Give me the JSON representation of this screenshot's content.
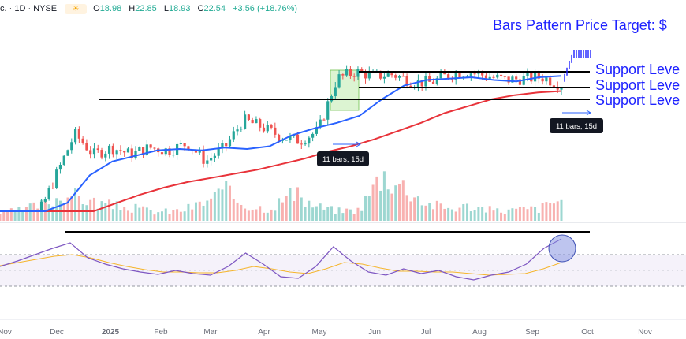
{
  "header": {
    "symbol": "c. · 1D · NYSE",
    "open_k": "O",
    "open_v": "18.98",
    "high_k": "H",
    "high_v": "22.85",
    "low_k": "L",
    "low_v": "18.93",
    "close_k": "C",
    "close_v": "22.54",
    "change": "+3.56 (+18.76%)",
    "session_icon": "sun-icon"
  },
  "annotations": {
    "target_label": "Bars Pattern Price Target: $",
    "support_labels": [
      "Support Leve",
      "Support Leve",
      "Support Leve"
    ],
    "bars_box_1": "11 bars, 15d",
    "bars_box_2": "11 bars, 15d"
  },
  "colors": {
    "up": "#26a69a",
    "down": "#ef5350",
    "ma_fast": "#2962ff",
    "ma_slow": "#e8333a",
    "rsi": "#7e57c2",
    "rsi_ma": "#f5b52b",
    "annotation": "#1e22ff"
  },
  "chart_data": [
    {
      "type": "candlestick",
      "title": "",
      "x_ticks": [
        "Nov",
        "Dec",
        "2025",
        "Feb",
        "Mar",
        "Apr",
        "May",
        "Jun",
        "Jul",
        "Aug",
        "Sep",
        "Oct",
        "Nov"
      ],
      "series": [
        {
          "name": "Price",
          "values": [
            10,
            11,
            13,
            16,
            19,
            17.5,
            18,
            17.5,
            18,
            17.8,
            18.3,
            17,
            18,
            20,
            19.5,
            18.8,
            18.5,
            19.2,
            23,
            23.5,
            23.2,
            23.3,
            22.8,
            22.7,
            23.3,
            23.5,
            23.2,
            22.9,
            23.0,
            23.1,
            22.54,
            24.5,
            26,
            28
          ]
        },
        {
          "name": "Moving average (fast)",
          "values": [
            9.8,
            10.5,
            12,
            14,
            16,
            17,
            17.4,
            17.8,
            17.9,
            17.8,
            18,
            17.9,
            18.1,
            18.9,
            19.4,
            19.8,
            20.3,
            21.5,
            22.5,
            22.9,
            23.0,
            23.1,
            22.9,
            22.8,
            23.1,
            23.2
          ]
        },
        {
          "name": "Moving average (slow)",
          "values": [
            11.5,
            11.6,
            11.8,
            12.3,
            13.2,
            14,
            14.6,
            15.1,
            15.5,
            15.8,
            16.1,
            16.4,
            16.8,
            17.2,
            17.7,
            18.1,
            18.6,
            19.2,
            19.8,
            20.5,
            21,
            21.5,
            21.8,
            22.0,
            22.1
          ]
        }
      ],
      "support_levels": [
        23.5,
        22.8,
        21.5
      ],
      "volume": [
        0.15,
        0.22,
        0.35,
        0.55,
        0.4,
        0.3,
        0.25,
        0.18,
        0.2,
        0.35,
        0.6,
        0.3,
        0.25,
        0.55,
        0.3,
        0.2,
        0.22,
        0.95,
        0.7,
        0.35,
        0.25,
        0.3,
        0.2,
        0.22,
        0.25,
        0.45
      ]
    },
    {
      "type": "line",
      "title": "",
      "series": [
        {
          "name": "RSI",
          "values": [
            55,
            62,
            70,
            78,
            85,
            66,
            58,
            52,
            48,
            45,
            50,
            46,
            44,
            55,
            72,
            58,
            42,
            40,
            55,
            80,
            62,
            48,
            44,
            52,
            46,
            50,
            42,
            38,
            44,
            48,
            58,
            78,
            90
          ]
        },
        {
          "name": "RSI MA",
          "values": [
            56,
            60,
            64,
            68,
            70,
            66,
            60,
            55,
            51,
            48,
            48,
            47,
            47,
            50,
            55,
            52,
            48,
            46,
            52,
            60,
            58,
            53,
            49,
            49,
            48,
            48,
            46,
            44,
            45,
            46,
            52,
            60
          ]
        }
      ],
      "levels": [
        70,
        30
      ]
    }
  ]
}
